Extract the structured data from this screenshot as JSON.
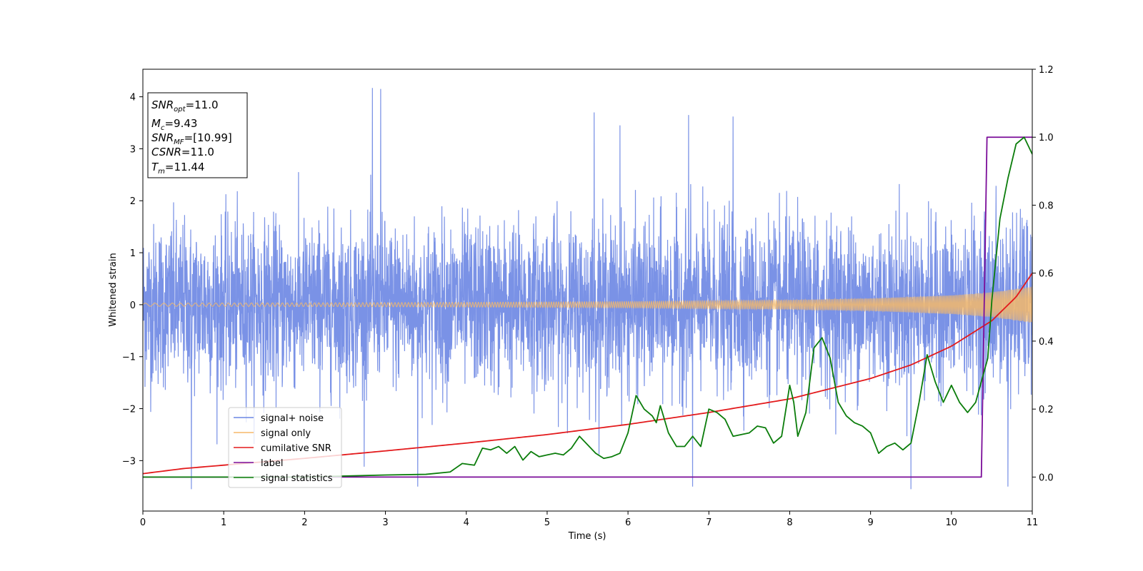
{
  "chart_data": {
    "type": "line",
    "xlabel": "Time (s)",
    "ylabel": "Whitened strain",
    "xlim": [
      0,
      11
    ],
    "ylim_left": [
      -3.97,
      4.53
    ],
    "ylim_right": [
      -0.1,
      1.2
    ],
    "x_ticks": [
      0,
      1,
      2,
      3,
      4,
      5,
      6,
      7,
      8,
      9,
      10,
      11
    ],
    "x_tick_labels": [
      "0",
      "1",
      "2",
      "3",
      "4",
      "5",
      "6",
      "7",
      "8",
      "9",
      "10",
      "11"
    ],
    "y_left_ticks": [
      -3,
      -2,
      -1,
      0,
      1,
      2,
      3,
      4
    ],
    "y_left_tick_labels": [
      "−3",
      "−2",
      "−1",
      "0",
      "1",
      "2",
      "3",
      "4"
    ],
    "y_right_ticks": [
      0.0,
      0.2,
      0.4,
      0.6,
      0.8,
      1.0,
      1.2
    ],
    "y_right_tick_labels": [
      "0.0",
      "0.2",
      "0.4",
      "0.6",
      "0.8",
      "1.0",
      "1.2"
    ],
    "grid": false,
    "legend_position": "lower-left",
    "series": [
      {
        "name": "signal+ noise",
        "axis": "left",
        "color": "#6b86e3",
        "kind": "noise",
        "sigma": 0.78,
        "max_excursions": [
          {
            "x": 2.84,
            "y": 4.17
          },
          {
            "x": 2.94,
            "y": 4.15
          },
          {
            "x": 5.58,
            "y": 3.7
          },
          {
            "x": 6.75,
            "y": 3.65
          },
          {
            "x": 7.3,
            "y": 3.62
          },
          {
            "x": 5.9,
            "y": 3.45
          },
          {
            "x": 0.6,
            "y": -3.55
          },
          {
            "x": 9.5,
            "y": -3.55
          },
          {
            "x": 10.7,
            "y": -3.5
          },
          {
            "x": 6.8,
            "y": -3.5
          },
          {
            "x": 3.4,
            "y": -3.5
          }
        ]
      },
      {
        "name": "signal only",
        "axis": "left",
        "color": "#f5b96a",
        "kind": "chirp",
        "points": [
          [
            0,
            0.03
          ],
          [
            2,
            0.035
          ],
          [
            4,
            0.045
          ],
          [
            6,
            0.06
          ],
          [
            8,
            0.09
          ],
          [
            9,
            0.12
          ],
          [
            10,
            0.18
          ],
          [
            10.5,
            0.24
          ],
          [
            11,
            0.35
          ]
        ]
      },
      {
        "name": "cumilative SNR",
        "axis": "right",
        "color": "#e31a1c",
        "points": [
          [
            0,
            0.01
          ],
          [
            0.5,
            0.025
          ],
          [
            1,
            0.035
          ],
          [
            2,
            0.055
          ],
          [
            3,
            0.077
          ],
          [
            4,
            0.1
          ],
          [
            5,
            0.125
          ],
          [
            6,
            0.155
          ],
          [
            7,
            0.19
          ],
          [
            8,
            0.23
          ],
          [
            9,
            0.29
          ],
          [
            9.5,
            0.33
          ],
          [
            10,
            0.385
          ],
          [
            10.5,
            0.46
          ],
          [
            10.8,
            0.53
          ],
          [
            11,
            0.6
          ]
        ]
      },
      {
        "name": "label",
        "axis": "right",
        "color": "#7b0d99",
        "points": [
          [
            0,
            0.0
          ],
          [
            10.37,
            0.0
          ],
          [
            10.44,
            1.0
          ],
          [
            11,
            1.0
          ]
        ]
      },
      {
        "name": "signal statistics",
        "axis": "right",
        "color": "#0b7d0b",
        "points": [
          [
            0,
            0.0
          ],
          [
            1,
            0.0
          ],
          [
            2,
            0.0
          ],
          [
            2.5,
            0.003
          ],
          [
            3,
            0.006
          ],
          [
            3.5,
            0.008
          ],
          [
            3.8,
            0.015
          ],
          [
            3.95,
            0.04
          ],
          [
            4.1,
            0.035
          ],
          [
            4.2,
            0.085
          ],
          [
            4.3,
            0.08
          ],
          [
            4.4,
            0.09
          ],
          [
            4.5,
            0.07
          ],
          [
            4.6,
            0.09
          ],
          [
            4.7,
            0.05
          ],
          [
            4.8,
            0.075
          ],
          [
            4.9,
            0.06
          ],
          [
            5.0,
            0.065
          ],
          [
            5.1,
            0.07
          ],
          [
            5.2,
            0.065
          ],
          [
            5.3,
            0.085
          ],
          [
            5.4,
            0.12
          ],
          [
            5.5,
            0.095
          ],
          [
            5.6,
            0.07
          ],
          [
            5.7,
            0.055
          ],
          [
            5.8,
            0.06
          ],
          [
            5.9,
            0.07
          ],
          [
            6.0,
            0.13
          ],
          [
            6.1,
            0.24
          ],
          [
            6.2,
            0.2
          ],
          [
            6.3,
            0.18
          ],
          [
            6.35,
            0.16
          ],
          [
            6.4,
            0.21
          ],
          [
            6.5,
            0.13
          ],
          [
            6.6,
            0.09
          ],
          [
            6.7,
            0.09
          ],
          [
            6.8,
            0.12
          ],
          [
            6.9,
            0.09
          ],
          [
            7.0,
            0.2
          ],
          [
            7.1,
            0.19
          ],
          [
            7.2,
            0.17
          ],
          [
            7.3,
            0.12
          ],
          [
            7.4,
            0.125
          ],
          [
            7.5,
            0.13
          ],
          [
            7.6,
            0.15
          ],
          [
            7.7,
            0.145
          ],
          [
            7.8,
            0.1
          ],
          [
            7.9,
            0.12
          ],
          [
            8.0,
            0.27
          ],
          [
            8.05,
            0.22
          ],
          [
            8.1,
            0.12
          ],
          [
            8.2,
            0.19
          ],
          [
            8.3,
            0.38
          ],
          [
            8.4,
            0.41
          ],
          [
            8.5,
            0.35
          ],
          [
            8.6,
            0.22
          ],
          [
            8.7,
            0.18
          ],
          [
            8.8,
            0.16
          ],
          [
            8.9,
            0.15
          ],
          [
            9.0,
            0.13
          ],
          [
            9.1,
            0.07
          ],
          [
            9.2,
            0.09
          ],
          [
            9.3,
            0.1
          ],
          [
            9.4,
            0.08
          ],
          [
            9.5,
            0.1
          ],
          [
            9.6,
            0.22
          ],
          [
            9.7,
            0.36
          ],
          [
            9.8,
            0.28
          ],
          [
            9.9,
            0.22
          ],
          [
            10.0,
            0.27
          ],
          [
            10.1,
            0.22
          ],
          [
            10.2,
            0.19
          ],
          [
            10.3,
            0.22
          ],
          [
            10.45,
            0.35
          ],
          [
            10.5,
            0.52
          ],
          [
            10.6,
            0.76
          ],
          [
            10.7,
            0.88
          ],
          [
            10.8,
            0.98
          ],
          [
            10.9,
            1.0
          ],
          [
            11.0,
            0.95
          ]
        ]
      }
    ],
    "annotation": {
      "snr_opt": {
        "sym": "SNR",
        "sub": "opt",
        "value": "=11.0"
      },
      "mc": {
        "sym": "M",
        "sub": "c",
        "value": "=9.43"
      },
      "snr_mf": {
        "sym": "SNR",
        "sub": "MF",
        "value": "=[10.99]"
      },
      "csnr": {
        "sym": "CSNR",
        "sub": "",
        "value": "=11.0"
      },
      "tm": {
        "sym": "T",
        "sub": "m",
        "value": "=11.44"
      }
    }
  }
}
